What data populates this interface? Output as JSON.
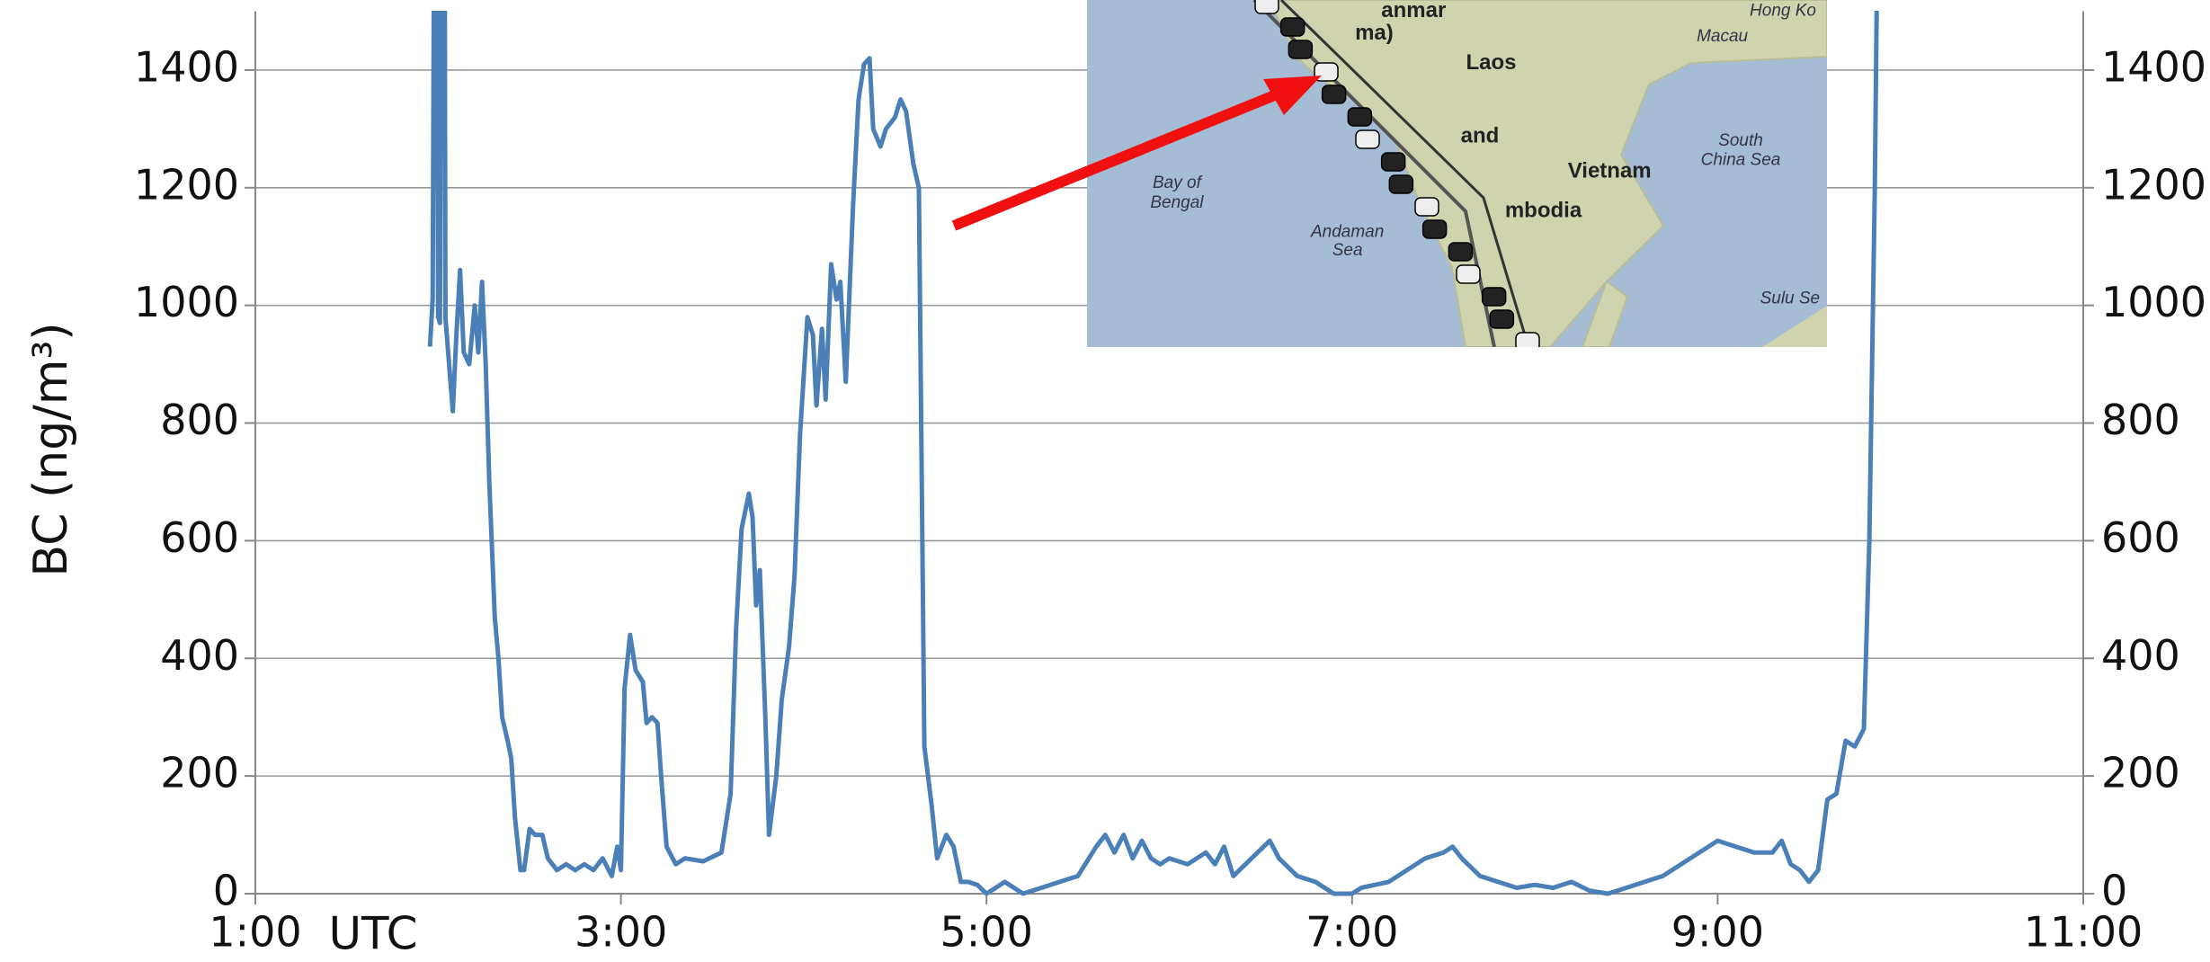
{
  "chart_data": {
    "type": "line",
    "y_label": "BC (ng/m³)",
    "x_label": "UTC",
    "xlim": [
      1,
      11
    ],
    "ylim": [
      0,
      1500
    ],
    "xticks": [
      {
        "value": 1,
        "label": "1:00"
      },
      {
        "value": 3,
        "label": "3:00"
      },
      {
        "value": 5,
        "label": "5:00"
      },
      {
        "value": 7,
        "label": "7:00"
      },
      {
        "value": 9,
        "label": "9:00"
      },
      {
        "value": 11,
        "label": "11:00"
      }
    ],
    "yticks": [
      0,
      200,
      400,
      600,
      800,
      1000,
      1200,
      1400
    ],
    "grid": true,
    "series": [
      {
        "color": "#4a7fb8",
        "x": [
          1.955,
          1.97,
          1.98,
          1.99,
          2.0,
          2.01,
          2.02,
          2.035,
          2.04,
          2.06,
          2.08,
          2.1,
          2.12,
          2.14,
          2.17,
          2.2,
          2.22,
          2.24,
          2.26,
          2.28,
          2.31,
          2.33,
          2.35,
          2.38,
          2.4,
          2.42,
          2.45,
          2.47,
          2.5,
          2.53,
          2.57,
          2.6,
          2.65,
          2.7,
          2.75,
          2.8,
          2.85,
          2.9,
          2.95,
          2.98,
          3.0,
          3.02,
          3.05,
          3.08,
          3.12,
          3.14,
          3.17,
          3.2,
          3.22,
          3.25,
          3.3,
          3.35,
          3.45,
          3.55,
          3.6,
          3.63,
          3.66,
          3.7,
          3.72,
          3.74,
          3.76,
          3.79,
          3.81,
          3.85,
          3.88,
          3.92,
          3.95,
          3.98,
          4.02,
          4.05,
          4.07,
          4.1,
          4.12,
          4.15,
          4.18,
          4.2,
          4.23,
          4.27,
          4.3,
          4.33,
          4.36,
          4.38,
          4.42,
          4.45,
          4.5,
          4.53,
          4.56,
          4.6,
          4.63,
          4.66,
          4.7,
          4.73,
          4.78,
          4.82,
          4.86,
          4.9,
          4.95,
          5.0,
          5.05,
          5.1,
          5.2,
          5.3,
          5.4,
          5.5,
          5.6,
          5.65,
          5.7,
          5.75,
          5.8,
          5.85,
          5.9,
          5.95,
          6.0,
          6.1,
          6.2,
          6.25,
          6.3,
          6.35,
          6.45,
          6.55,
          6.6,
          6.7,
          6.8,
          6.85,
          6.9,
          7.0,
          7.05,
          7.2,
          7.3,
          7.4,
          7.5,
          7.55,
          7.6,
          7.7,
          7.8,
          7.9,
          8.0,
          8.1,
          8.2,
          8.3,
          8.4,
          8.5,
          8.6,
          8.7,
          8.8,
          8.9,
          9.0,
          9.1,
          9.2,
          9.3,
          9.35,
          9.4,
          9.45,
          9.5,
          9.55,
          9.6,
          9.65,
          9.7,
          9.75,
          9.8,
          9.83,
          9.86,
          9.88
        ],
        "values": [
          930,
          1010,
          1800,
          1800,
          980,
          970,
          1800,
          1800,
          980,
          900,
          820,
          950,
          1060,
          920,
          900,
          1000,
          920,
          1040,
          900,
          700,
          470,
          400,
          300,
          260,
          230,
          130,
          40,
          40,
          110,
          100,
          100,
          60,
          40,
          50,
          40,
          50,
          40,
          60,
          30,
          80,
          40,
          350,
          440,
          380,
          360,
          290,
          300,
          290,
          200,
          80,
          50,
          60,
          55,
          70,
          170,
          450,
          620,
          680,
          640,
          490,
          550,
          300,
          100,
          200,
          330,
          420,
          540,
          780,
          980,
          950,
          830,
          960,
          840,
          1070,
          1010,
          1040,
          870,
          1170,
          1350,
          1410,
          1420,
          1300,
          1270,
          1300,
          1320,
          1350,
          1330,
          1240,
          1200,
          250,
          150,
          60,
          100,
          80,
          20,
          20,
          15,
          0,
          10,
          20,
          0,
          10,
          20,
          30,
          80,
          100,
          70,
          100,
          60,
          90,
          60,
          50,
          60,
          50,
          70,
          50,
          80,
          30,
          60,
          90,
          60,
          30,
          20,
          10,
          0,
          0,
          10,
          20,
          40,
          60,
          70,
          80,
          60,
          30,
          20,
          10,
          15,
          10,
          20,
          5,
          0,
          10,
          20,
          30,
          50,
          70,
          90,
          80,
          70,
          70,
          90,
          50,
          40,
          20,
          40,
          160,
          170,
          260,
          250,
          280,
          600,
          1200,
          1800
        ]
      }
    ],
    "map_labels": [
      "anmar",
      "ma)",
      "Laos",
      "Hong Ko",
      "Macau",
      "and",
      "Vietnam",
      "mbodia",
      "Bay of",
      "Bengal",
      "Andaman",
      "Sea",
      "South",
      "China Sea",
      "Sulu Se"
    ]
  }
}
